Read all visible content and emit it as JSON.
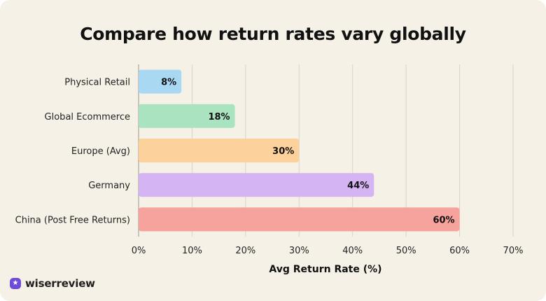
{
  "chart_data": {
    "type": "bar",
    "orientation": "horizontal",
    "title": "Compare how return rates vary globally",
    "xlabel": "Avg Return Rate (%)",
    "ylabel": "",
    "xlim": [
      0,
      70
    ],
    "x_ticks": [
      "0%",
      "10%",
      "20%",
      "30%",
      "40%",
      "50%",
      "60%",
      "70%"
    ],
    "grid": true,
    "categories": [
      "Physical Retail",
      "Global Ecommerce",
      "Europe (Avg)",
      "Germany",
      "China (Post Free Returns)"
    ],
    "values": [
      8,
      18,
      30,
      44,
      60
    ],
    "value_labels": [
      "8%",
      "18%",
      "30%",
      "44%",
      "60%"
    ],
    "colors": [
      "#a9d8f3",
      "#a9e3bf",
      "#fdd19c",
      "#d4b4f2",
      "#f7a39d"
    ]
  },
  "brand": {
    "name": "wiserreview",
    "logo_icon": "star-badge-icon",
    "logo_color": "#6e4bd8"
  }
}
